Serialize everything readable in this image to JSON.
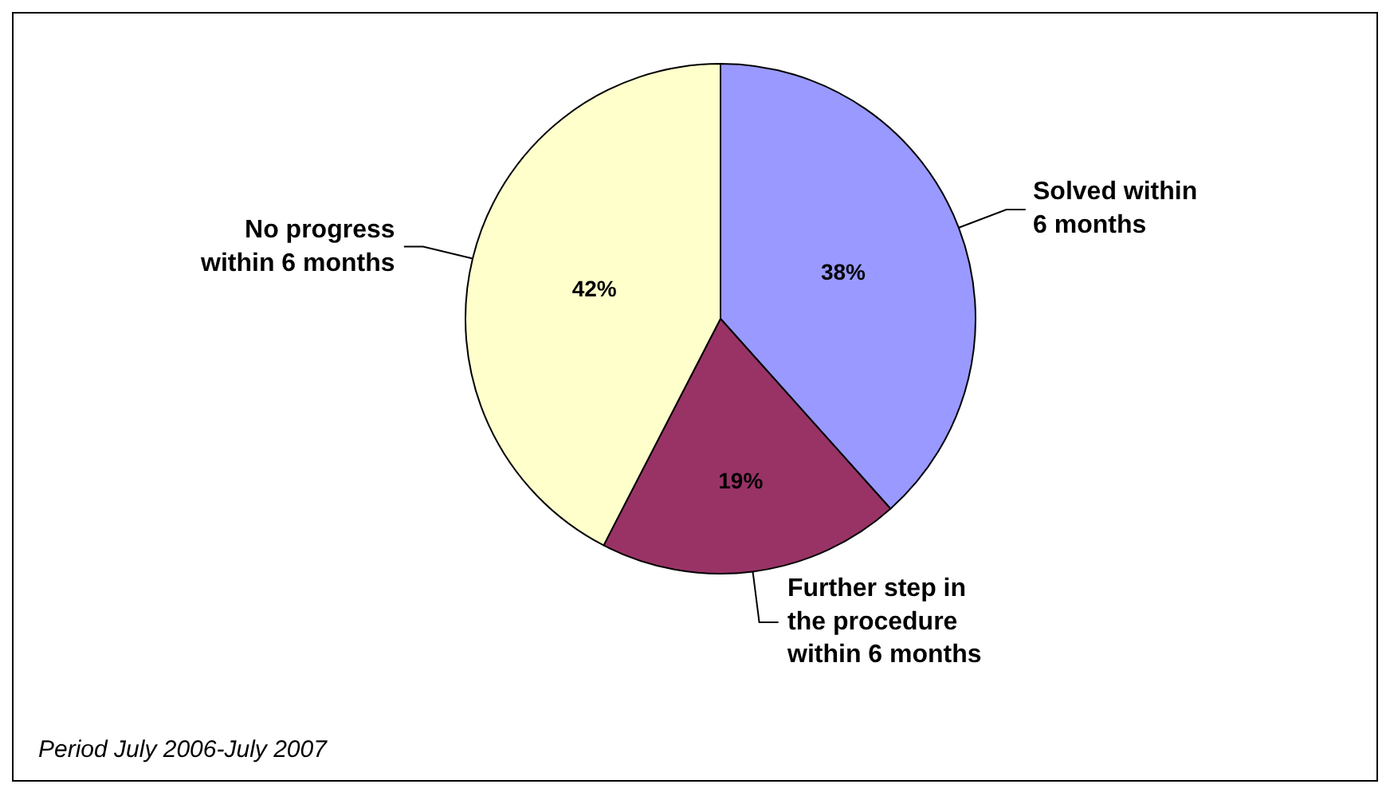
{
  "chart_data": {
    "type": "pie",
    "categories": [
      "Solved within\n6 months",
      "Further step in\nthe procedure\nwithin 6 months",
      "No progress\nwithin 6 months"
    ],
    "values": [
      38,
      19,
      42
    ],
    "colors": [
      "#9999ff",
      "#993366",
      "#ffffcc"
    ],
    "value_labels": [
      "38%",
      "19%",
      "42%"
    ],
    "legend": false,
    "annotations": [
      "Period July 2006-July 2007"
    ]
  }
}
